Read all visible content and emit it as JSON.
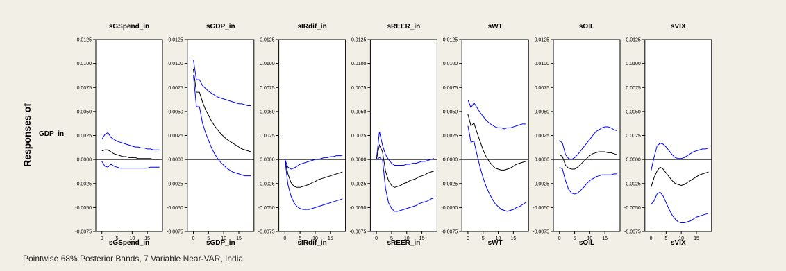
{
  "figure": {
    "row_label": "Responses of",
    "response_variable": "GDP_in",
    "footnote": "Pointwise 68% Posterior Bands, 7 Variable Near-VAR, India"
  },
  "colors": {
    "background": "#f2efe6",
    "plot_background": "#ffffff",
    "median_line": "#000000",
    "band_line": "#0000ff",
    "axis": "#000000"
  },
  "chart_data": {
    "type": "line",
    "ylim": [
      -0.0075,
      0.0125
    ],
    "yticks": [
      "0.0125",
      "0.0100",
      "0.0075",
      "0.0050",
      "0.0025",
      "0.0000",
      "-0.0025",
      "-0.0050",
      "-0.0075"
    ],
    "ytick_values": [
      0.0125,
      0.01,
      0.0075,
      0.005,
      0.0025,
      0.0,
      -0.0025,
      -0.005,
      -0.0075
    ],
    "xlim": [
      -2,
      20
    ],
    "xticks": [
      "0",
      "5",
      "10",
      "15"
    ],
    "xtick_values": [
      0,
      5,
      10,
      15
    ],
    "x": [
      0,
      1,
      2,
      3,
      4,
      5,
      6,
      7,
      8,
      9,
      10,
      11,
      12,
      13,
      14,
      15,
      16,
      17,
      18,
      19
    ],
    "panels": [
      {
        "shock": "sGSpend_in",
        "series": [
          {
            "role": "upper",
            "values": [
              0.0021,
              0.0026,
              0.0028,
              0.0023,
              0.0021,
              0.0019,
              0.0018,
              0.0017,
              0.0016,
              0.0015,
              0.0014,
              0.0013,
              0.0013,
              0.0012,
              0.0012,
              0.0011,
              0.0011,
              0.001,
              0.001,
              0.001
            ]
          },
          {
            "role": "median",
            "values": [
              0.0009,
              0.001,
              0.001,
              0.0008,
              0.0006,
              0.0005,
              0.0004,
              0.0003,
              0.0003,
              0.0002,
              0.0002,
              0.0002,
              0.0001,
              0.0001,
              0.0001,
              0.0001,
              0.0001,
              0.0,
              0.0,
              0.0
            ]
          },
          {
            "role": "lower",
            "values": [
              -0.0002,
              -0.0007,
              -0.0008,
              -0.0005,
              -0.0007,
              -0.0008,
              -0.0009,
              -0.0009,
              -0.0009,
              -0.0009,
              -0.0009,
              -0.0009,
              -0.0009,
              -0.0009,
              -0.0009,
              -0.0009,
              -0.0008,
              -0.0008,
              -0.0008,
              -0.0008
            ]
          }
        ]
      },
      {
        "shock": "sGDP_in",
        "series": [
          {
            "role": "upper",
            "values": [
              0.0104,
              0.0083,
              0.0083,
              0.0077,
              0.0074,
              0.0071,
              0.0069,
              0.0067,
              0.0065,
              0.0064,
              0.0063,
              0.0062,
              0.0061,
              0.006,
              0.0059,
              0.0058,
              0.0058,
              0.0057,
              0.0056,
              0.0056
            ]
          },
          {
            "role": "median",
            "values": [
              0.0094,
              0.007,
              0.007,
              0.006,
              0.0052,
              0.0046,
              0.004,
              0.0035,
              0.0031,
              0.0027,
              0.0024,
              0.0021,
              0.0019,
              0.0017,
              0.0015,
              0.0013,
              0.0011,
              0.001,
              0.0009,
              0.0008
            ]
          },
          {
            "role": "lower",
            "values": [
              0.0088,
              0.0055,
              0.0055,
              0.0038,
              0.0028,
              0.002,
              0.0012,
              0.0006,
              0.0001,
              -0.0003,
              -0.0006,
              -0.0009,
              -0.0011,
              -0.0013,
              -0.0014,
              -0.0015,
              -0.0016,
              -0.0017,
              -0.0017,
              -0.0017
            ]
          }
        ]
      },
      {
        "shock": "sIRdif_in",
        "series": [
          {
            "role": "upper",
            "values": [
              0.0,
              -0.0008,
              -0.001,
              -0.0009,
              -0.0007,
              -0.0005,
              -0.0004,
              -0.0003,
              -0.0002,
              -0.0001,
              0.0,
              0.0,
              0.0001,
              0.0002,
              0.0002,
              0.0003,
              0.0003,
              0.0004,
              0.0004,
              0.0004
            ]
          },
          {
            "role": "median",
            "values": [
              0.0,
              -0.0015,
              -0.0024,
              -0.0028,
              -0.0029,
              -0.0029,
              -0.0028,
              -0.0027,
              -0.0026,
              -0.0024,
              -0.0023,
              -0.0021,
              -0.002,
              -0.0019,
              -0.0018,
              -0.0017,
              -0.0016,
              -0.0015,
              -0.0014,
              -0.0013
            ]
          },
          {
            "role": "lower",
            "values": [
              0.0,
              -0.0026,
              -0.0038,
              -0.0045,
              -0.0049,
              -0.0051,
              -0.0052,
              -0.0052,
              -0.0052,
              -0.0051,
              -0.005,
              -0.0049,
              -0.0048,
              -0.0047,
              -0.0046,
              -0.0045,
              -0.0044,
              -0.0043,
              -0.0042,
              -0.0041
            ]
          }
        ]
      },
      {
        "shock": "sREER_in",
        "series": [
          {
            "role": "upper",
            "values": [
              0.0,
              0.0029,
              0.0015,
              0.0005,
              0.0,
              -0.0004,
              -0.0006,
              -0.0006,
              -0.0006,
              -0.0006,
              -0.0005,
              -0.0005,
              -0.0004,
              -0.0004,
              -0.0003,
              -0.0002,
              -0.0002,
              -0.0001,
              0.0,
              0.0001
            ]
          },
          {
            "role": "median",
            "values": [
              0.0,
              0.0015,
              0.0008,
              -0.0012,
              -0.0022,
              -0.0027,
              -0.0029,
              -0.0028,
              -0.0027,
              -0.0025,
              -0.0024,
              -0.0022,
              -0.0021,
              -0.002,
              -0.0018,
              -0.0017,
              -0.0016,
              -0.0014,
              -0.0013,
              -0.0012
            ]
          },
          {
            "role": "lower",
            "values": [
              0.0,
              0.0002,
              0.0,
              -0.003,
              -0.0045,
              -0.0051,
              -0.0054,
              -0.0054,
              -0.0053,
              -0.0052,
              -0.0051,
              -0.005,
              -0.0049,
              -0.0048,
              -0.0046,
              -0.0045,
              -0.0044,
              -0.0043,
              -0.0041,
              -0.004
            ]
          }
        ]
      },
      {
        "shock": "sWT",
        "series": [
          {
            "role": "upper",
            "values": [
              0.0062,
              0.0054,
              0.0059,
              0.0054,
              0.0049,
              0.0045,
              0.0041,
              0.0038,
              0.0036,
              0.0034,
              0.0033,
              0.0033,
              0.0032,
              0.0033,
              0.0033,
              0.0034,
              0.0035,
              0.0036,
              0.0037,
              0.0037
            ]
          },
          {
            "role": "median",
            "values": [
              0.0047,
              0.0035,
              0.0038,
              0.0028,
              0.0019,
              0.001,
              0.0003,
              -0.0002,
              -0.0006,
              -0.0009,
              -0.001,
              -0.0011,
              -0.0011,
              -0.001,
              -0.0009,
              -0.0007,
              -0.0005,
              -0.0004,
              -0.0003,
              -0.0002
            ]
          },
          {
            "role": "lower",
            "values": [
              0.0035,
              0.0018,
              0.0019,
              0.0005,
              -0.0008,
              -0.0019,
              -0.0028,
              -0.0035,
              -0.0041,
              -0.0046,
              -0.0049,
              -0.0052,
              -0.0053,
              -0.0054,
              -0.0053,
              -0.0052,
              -0.005,
              -0.0049,
              -0.0047,
              -0.0045
            ]
          }
        ]
      },
      {
        "shock": "sOIL",
        "series": [
          {
            "role": "upper",
            "values": [
              0.002,
              0.0017,
              0.0005,
              0.0001,
              0.0,
              0.0002,
              0.0005,
              0.0009,
              0.0013,
              0.0017,
              0.0021,
              0.0025,
              0.0029,
              0.0031,
              0.0033,
              0.0034,
              0.0034,
              0.0033,
              0.0031,
              0.003
            ]
          },
          {
            "role": "median",
            "values": [
              0.0005,
              0.0003,
              -0.0006,
              -0.0009,
              -0.001,
              -0.001,
              -0.0008,
              -0.0005,
              -0.0002,
              0.0001,
              0.0004,
              0.0006,
              0.0007,
              0.0008,
              0.0008,
              0.0008,
              0.0007,
              0.0007,
              0.0006,
              0.0005
            ]
          },
          {
            "role": "lower",
            "values": [
              -0.0008,
              -0.001,
              -0.0022,
              -0.0031,
              -0.0035,
              -0.0036,
              -0.0035,
              -0.0032,
              -0.0029,
              -0.0025,
              -0.0022,
              -0.002,
              -0.0018,
              -0.0017,
              -0.0016,
              -0.0016,
              -0.0016,
              -0.0016,
              -0.0015,
              -0.0015
            ]
          }
        ]
      },
      {
        "shock": "sVIX",
        "series": [
          {
            "role": "upper",
            "values": [
              -0.0012,
              0.0002,
              0.0014,
              0.0017,
              0.0016,
              0.0013,
              0.0009,
              0.0005,
              0.0002,
              0.0001,
              0.0001,
              0.0002,
              0.0004,
              0.0006,
              0.0008,
              0.0009,
              0.001,
              0.0011,
              0.0011,
              0.0012
            ]
          },
          {
            "role": "median",
            "values": [
              -0.0029,
              -0.0019,
              -0.0012,
              -0.0008,
              -0.001,
              -0.0014,
              -0.0018,
              -0.0022,
              -0.0025,
              -0.0026,
              -0.0027,
              -0.0026,
              -0.0024,
              -0.0022,
              -0.002,
              -0.0018,
              -0.0016,
              -0.0015,
              -0.0014,
              -0.0013
            ]
          },
          {
            "role": "lower",
            "values": [
              -0.0047,
              -0.0043,
              -0.0036,
              -0.0034,
              -0.0038,
              -0.0045,
              -0.0052,
              -0.0058,
              -0.0062,
              -0.0065,
              -0.0066,
              -0.0066,
              -0.0065,
              -0.0064,
              -0.0062,
              -0.006,
              -0.0059,
              -0.0058,
              -0.0057,
              -0.0056
            ]
          }
        ]
      }
    ]
  }
}
